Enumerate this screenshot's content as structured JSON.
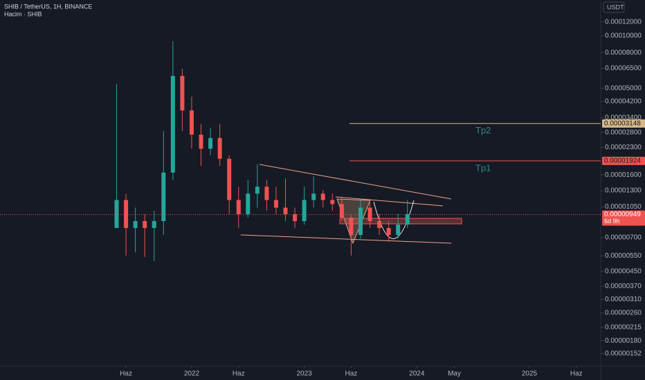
{
  "header": {
    "symbol": "SHIB / TetherUS, 1H, BINANCE",
    "volume": "Hacim · SHIB"
  },
  "chart_data": {
    "type": "candlestick",
    "currency": "USDT",
    "log_scale": true,
    "x": [
      4,
      5,
      6,
      7,
      8,
      9,
      10,
      11,
      12,
      13,
      14,
      15,
      16,
      17,
      18,
      19,
      20,
      21,
      22,
      23,
      24,
      25,
      26,
      27,
      28,
      29,
      30,
      31,
      32,
      33,
      34,
      35
    ],
    "open": [
      7.96e-06,
      1.15e-05,
      7.96e-06,
      8.71e-06,
      7.96e-06,
      8.71e-06,
      1.65e-05,
      5.89e-05,
      3.74e-05,
      2.72e-05,
      2.26e-05,
      2.6e-05,
      1.98e-05,
      1.15e-05,
      9.54e-06,
      1.25e-05,
      1.37e-05,
      1.15e-05,
      1.04e-05,
      9.54e-06,
      8.71e-06,
      1.15e-05,
      1.25e-05,
      1.15e-05,
      1.09e-05,
      9.12e-06,
      7.26e-06,
      1.04e-05,
      8.71e-06,
      7.96e-06,
      7.26e-06,
      8.32e-06
    ],
    "high": [
      5.28e-05,
      1.25e-05,
      1.04e-05,
      9.54e-06,
      9.98e-06,
      2.85e-05,
      9.29e-05,
      6.46e-05,
      4.49e-05,
      3.12e-05,
      2.98e-05,
      3.12e-05,
      2.07e-05,
      1.37e-05,
      1.5e-05,
      1.84e-05,
      1.5e-05,
      1.37e-05,
      1.53e-05,
      1.04e-05,
      1.37e-05,
      1.57e-05,
      1.31e-05,
      1.25e-05,
      1.2e-05,
      9.54e-06,
      1.15e-05,
      1.15e-05,
      9.54e-06,
      8.71e-06,
      9.54e-06,
      1.15e-05
    ],
    "low": [
      7.96e-06,
      5.53e-06,
      5.78e-06,
      5.43e-06,
      5.14e-06,
      7.26e-06,
      1.5e-05,
      2.85e-05,
      2.26e-05,
      1.8e-05,
      2.07e-05,
      1.8e-05,
      9.54e-06,
      7.96e-06,
      9.12e-06,
      1.04e-05,
      9.98e-06,
      9.54e-06,
      8.71e-06,
      7.96e-06,
      8.32e-06,
      1.04e-05,
      1.04e-05,
      9.98e-06,
      8.71e-06,
      5.53e-06,
      6.94e-06,
      7.96e-06,
      7.26e-06,
      6.64e-06,
      6.94e-06,
      7.96e-06
    ],
    "close": [
      1.15e-05,
      7.96e-06,
      8.71e-06,
      7.96e-06,
      8.71e-06,
      1.65e-05,
      5.89e-05,
      3.74e-05,
      2.72e-05,
      2.26e-05,
      2.6e-05,
      1.98e-05,
      1.15e-05,
      9.54e-06,
      1.25e-05,
      1.37e-05,
      1.15e-05,
      1.04e-05,
      9.54e-06,
      8.71e-06,
      1.15e-05,
      1.25e-05,
      1.15e-05,
      1.09e-05,
      9.12e-06,
      7.26e-06,
      1.04e-05,
      8.71e-06,
      7.96e-06,
      7.26e-06,
      8.32e-06,
      9.54e-06
    ],
    "up_color": "#26a69a",
    "down_color": "#ef5350",
    "xlim": [
      -8.43,
      55.6
    ],
    "xticks": [
      {
        "value": 5,
        "label": "Haz"
      },
      {
        "value": 12,
        "label": "2022"
      },
      {
        "value": 17,
        "label": "Haz"
      },
      {
        "value": 24,
        "label": "2023"
      },
      {
        "value": 29,
        "label": "Haz"
      },
      {
        "value": 36,
        "label": "2024"
      },
      {
        "value": 40,
        "label": "May"
      },
      {
        "value": 48,
        "label": "2025"
      },
      {
        "value": 53,
        "label": "Haz"
      }
    ],
    "ylim": [
      1.29e-06,
      0.00016
    ],
    "yticks": [
      {
        "value": 0.00012,
        "label": "0.00012000"
      },
      {
        "value": 0.0001,
        "label": "0.00010000"
      },
      {
        "value": 8e-05,
        "label": "0.00008000"
      },
      {
        "value": 6.5e-05,
        "label": "0.00006500"
      },
      {
        "value": 5e-05,
        "label": "0.00005000"
      },
      {
        "value": 4.2e-05,
        "label": "0.00004200"
      },
      {
        "value": 3.4e-05,
        "label": "0.00003400"
      },
      {
        "value": 2.8e-05,
        "label": "0.00002800"
      },
      {
        "value": 2.3e-05,
        "label": "0.00002300"
      },
      {
        "value": 1.6e-05,
        "label": "0.00001600"
      },
      {
        "value": 1.3e-05,
        "label": "0.00001300"
      },
      {
        "value": 1.05e-05,
        "label": "0.00001050"
      },
      {
        "value": 7e-06,
        "label": "0.00000700"
      },
      {
        "value": 5.5e-06,
        "label": "0.00000550"
      },
      {
        "value": 4.5e-06,
        "label": "0.00000450"
      },
      {
        "value": 3.7e-06,
        "label": "0.00000370"
      },
      {
        "value": 3.1e-06,
        "label": "0.00000310"
      },
      {
        "value": 2.6e-06,
        "label": "0.00000260"
      },
      {
        "value": 2.15e-06,
        "label": "0.00000215"
      },
      {
        "value": 1.8e-06,
        "label": "0.00000180"
      },
      {
        "value": 1.52e-06,
        "label": "0.00000152"
      }
    ],
    "levels": [
      {
        "name": "Tp2",
        "value": 3.148e-05,
        "label": "0.00003148",
        "color": "#d7b98a"
      },
      {
        "name": "Tp1",
        "value": 1.924e-05,
        "label": "0.00001924",
        "color": "#ef5350"
      }
    ],
    "last_price": {
      "value": 9.49e-06,
      "label": "0.00000949",
      "color": "#ef5350"
    },
    "countdown": "6d 9h"
  }
}
